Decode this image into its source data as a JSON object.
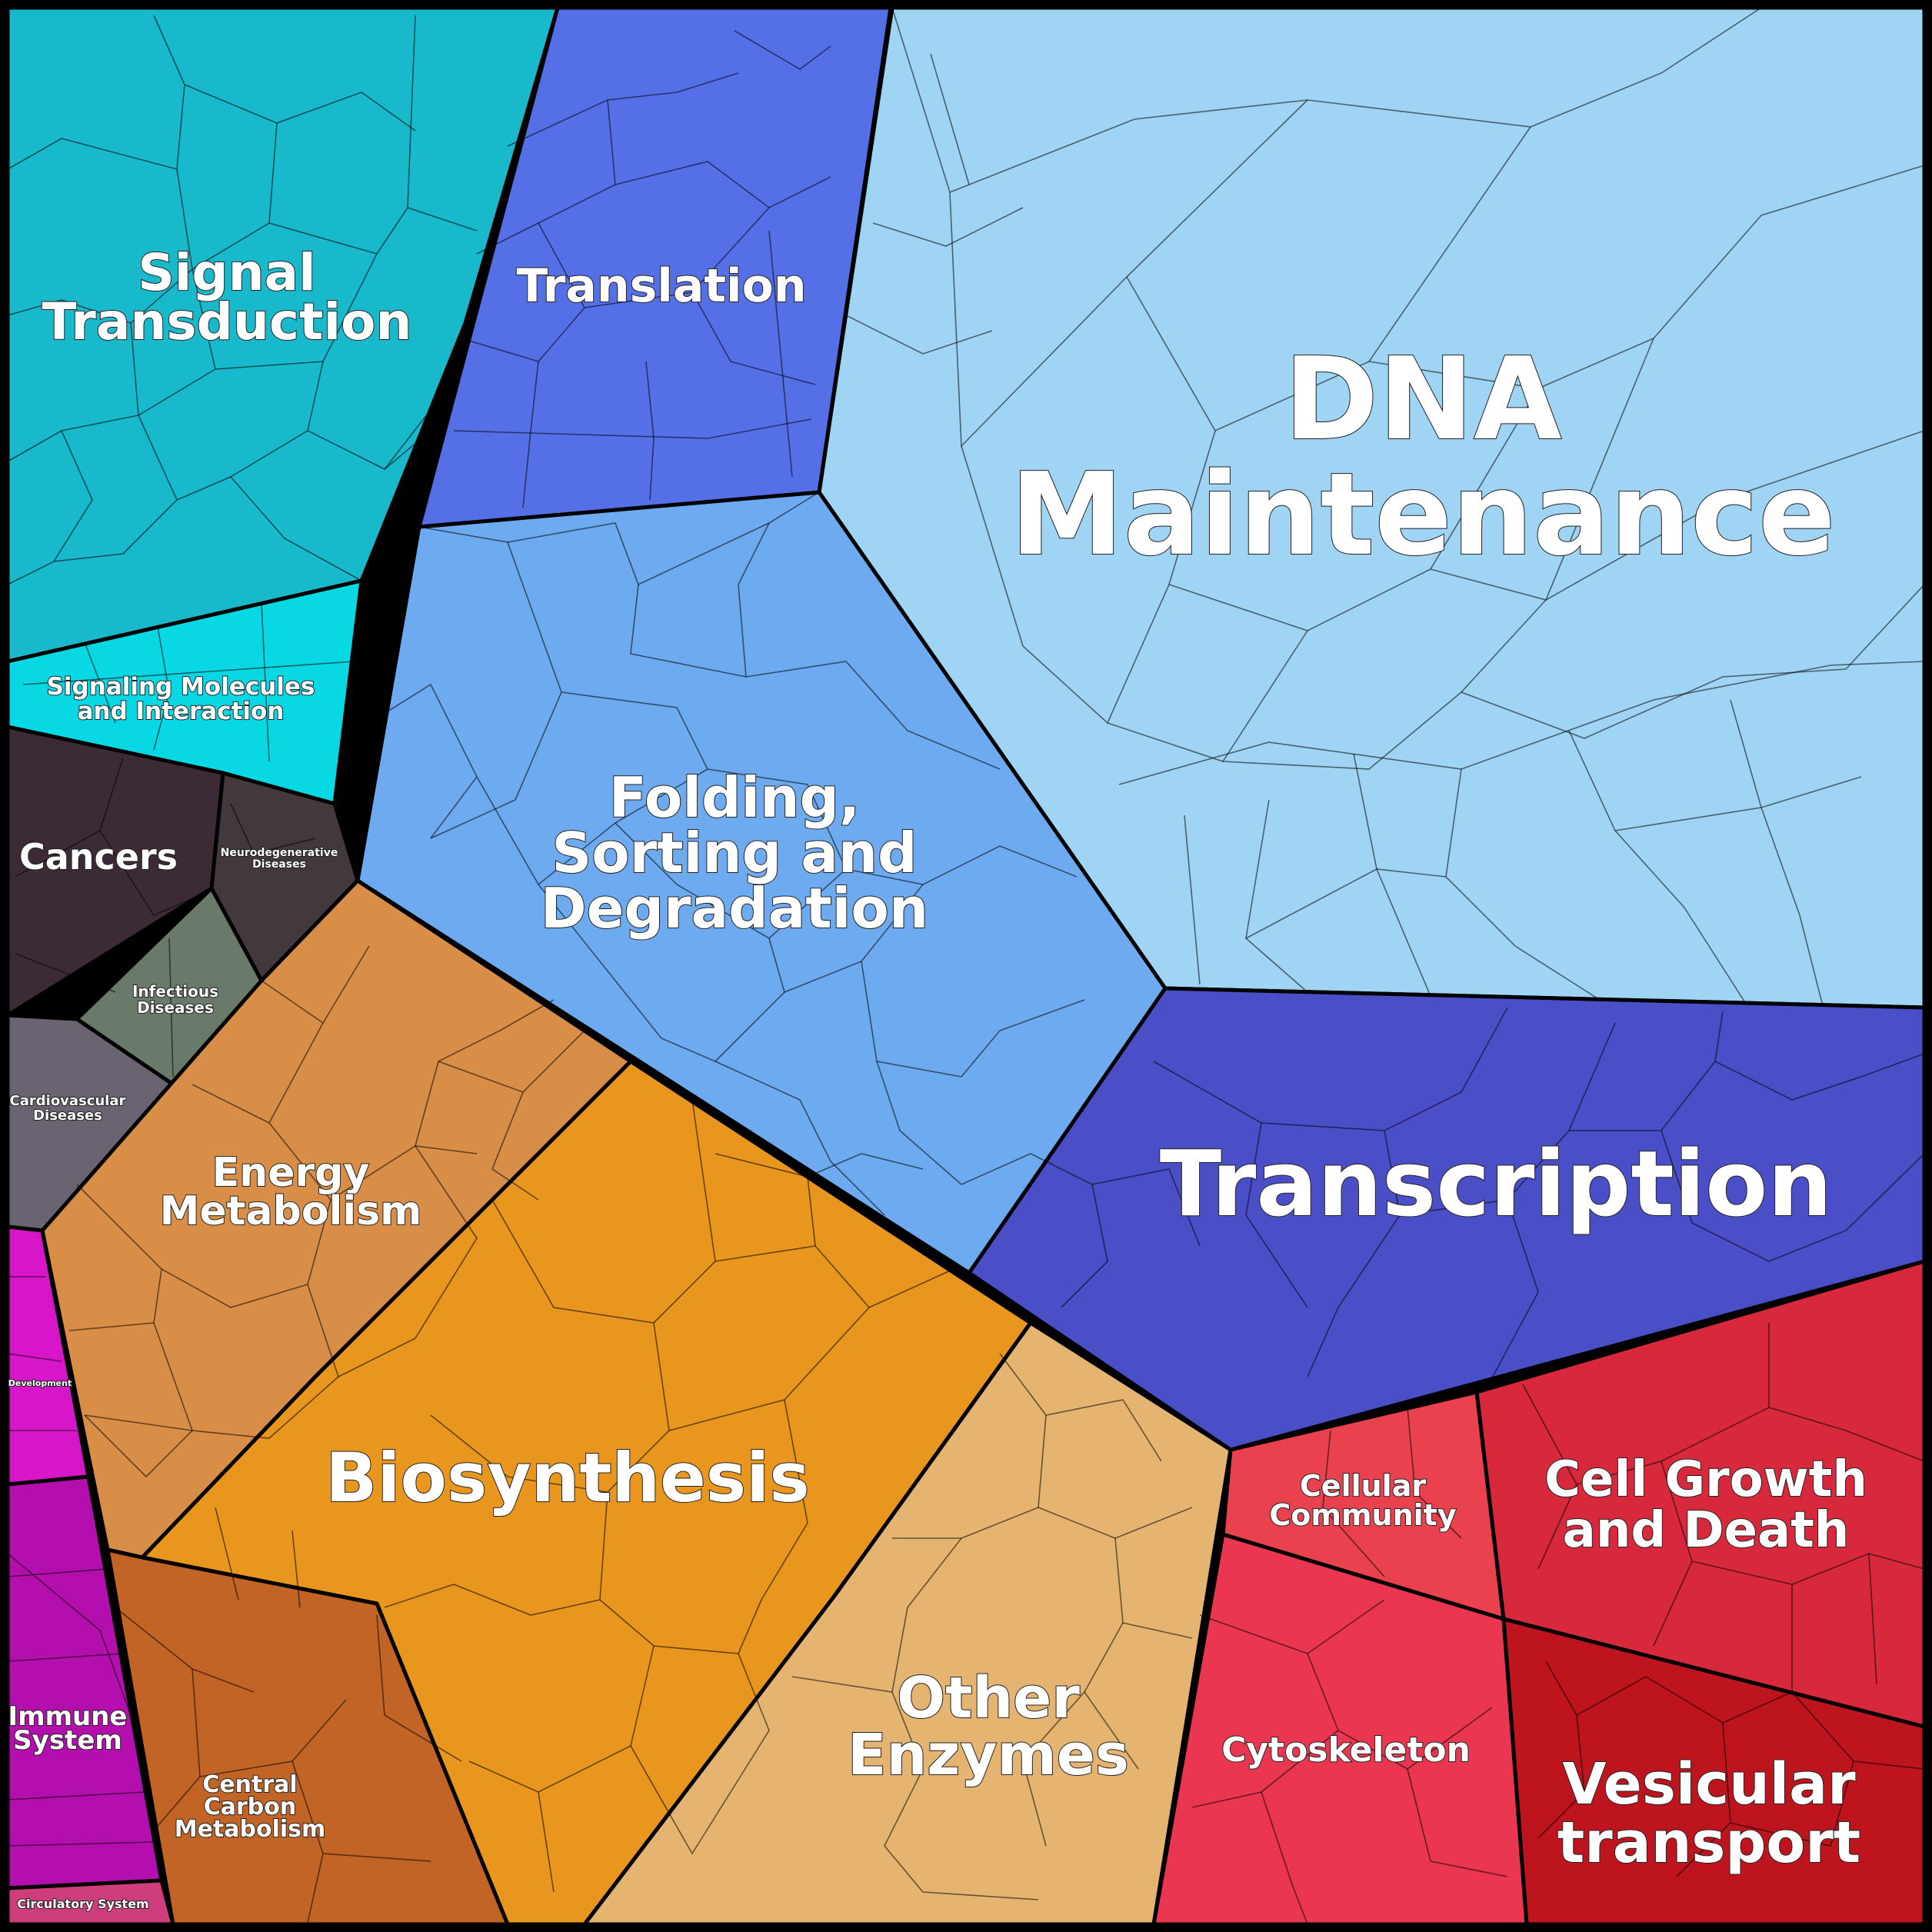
{
  "regions": [
    {
      "id": "dna-maintenance",
      "label": [
        "DNA",
        "Maintenance"
      ],
      "color": "#9fd4f4"
    },
    {
      "id": "transcription",
      "label": [
        "Transcription"
      ],
      "color": "#4a4fc8"
    },
    {
      "id": "folding-sorting-degradation",
      "label": [
        "Folding,",
        "Sorting and",
        "Degradation"
      ],
      "color": "#6eaaf0"
    },
    {
      "id": "translation",
      "label": [
        "Translation"
      ],
      "color": "#5570e6"
    },
    {
      "id": "signal-transduction",
      "label": [
        "Signal",
        "Transduction"
      ],
      "color": "#19b9cc"
    },
    {
      "id": "signaling-molecules",
      "label": [
        "Signaling Molecules",
        "and Interaction"
      ],
      "color": "#08d8e4"
    },
    {
      "id": "cancers",
      "label": [
        "Cancers"
      ],
      "color": "#3c2a36"
    },
    {
      "id": "neurodegenerative-diseases",
      "label": [
        "Neurodegenerative",
        "Diseases"
      ],
      "color": "#43383c"
    },
    {
      "id": "infectious-diseases",
      "label": [
        "Infectious",
        "Diseases"
      ],
      "color": "#6a7a6a"
    },
    {
      "id": "cardiovascular-diseases",
      "label": [
        "Cardiovascular",
        "Diseases"
      ],
      "color": "#6a6472"
    },
    {
      "id": "energy-metabolism",
      "label": [
        "Energy",
        "Metabolism"
      ],
      "color": "#d98e48"
    },
    {
      "id": "biosynthesis",
      "label": [
        "Biosynthesis"
      ],
      "color": "#e8961e"
    },
    {
      "id": "other-enzymes",
      "label": [
        "Other",
        "Enzymes"
      ],
      "color": "#e4b470"
    },
    {
      "id": "central-carbon-metabolism",
      "label": [
        "Central",
        "Carbon",
        "Metabolism"
      ],
      "color": "#c26426"
    },
    {
      "id": "development",
      "label": [
        "Development"
      ],
      "color": "#d616c8"
    },
    {
      "id": "immune-system",
      "label": [
        "Immune",
        "System"
      ],
      "color": "#b40fae"
    },
    {
      "id": "circulatory-system",
      "label": [
        "Circulatory System"
      ],
      "color": "#cf3e7c"
    },
    {
      "id": "cellular-community",
      "label": [
        "Cellular",
        "Community"
      ],
      "color": "#e9424e"
    },
    {
      "id": "cell-growth-and-death",
      "label": [
        "Cell Growth",
        "and Death"
      ],
      "color": "#d8283c"
    },
    {
      "id": "cytoskeleton",
      "label": [
        "Cytoskeleton"
      ],
      "color": "#ea3650"
    },
    {
      "id": "vesicular-transport",
      "label": [
        "Vesicular",
        "transport"
      ],
      "color": "#be141e"
    }
  ]
}
